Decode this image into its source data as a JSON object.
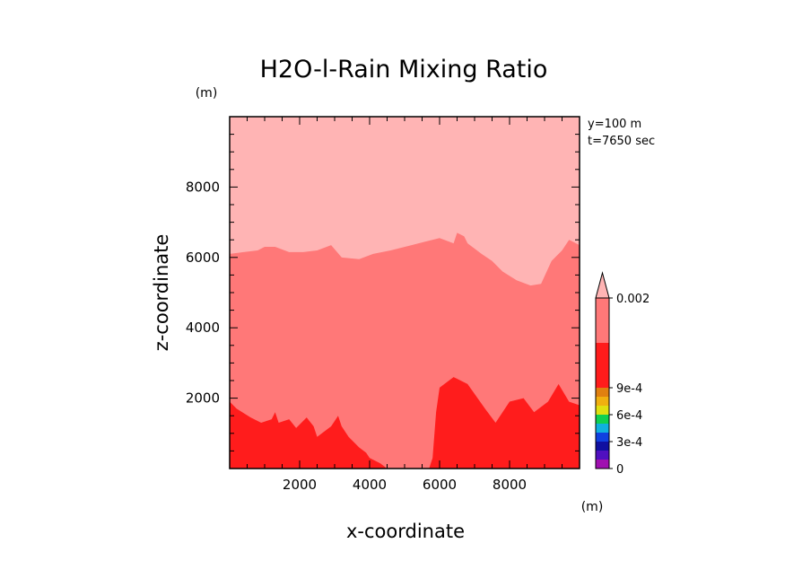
{
  "chart_data": {
    "type": "heatmap",
    "title": "H2O-l-Rain Mixing Ratio",
    "xlabel": "x-coordinate",
    "ylabel": "z-coordinate",
    "x_unit": "(m)",
    "y_unit": "(m)",
    "annotations": [
      "y=100 m",
      "t=7650 sec"
    ],
    "xlim": [
      0,
      10000
    ],
    "ylim": [
      0,
      10000
    ],
    "xticks": [
      2000,
      4000,
      6000,
      8000
    ],
    "yticks": [
      2000,
      4000,
      6000,
      8000
    ],
    "xtick_labels": [
      "2000",
      "4000",
      "6000",
      "8000"
    ],
    "ytick_labels": [
      "2000",
      "4000",
      "6000",
      "8000"
    ],
    "grid": false,
    "colorbar": {
      "labels": [
        "0.002",
        "9e-4",
        "6e-4",
        "3e-4",
        "0"
      ],
      "colors": [
        "#a010b0",
        "#5010c0",
        "#1010a0",
        "#1040e0",
        "#10b0e0",
        "#10d050",
        "#e0e010",
        "#f0b010",
        "#e08010",
        "#ff1c1c",
        "#ff7878",
        "#ffb4b4"
      ],
      "extend": "max"
    },
    "regions": [
      {
        "name": "light-pink-top",
        "color": "#ffb4b4",
        "boundary_points": []
      },
      {
        "name": "mid-red-band",
        "color": "#ff7878",
        "upper_boundary": [
          [
            0,
            6100
          ],
          [
            400,
            6150
          ],
          [
            800,
            6200
          ],
          [
            1000,
            6300
          ],
          [
            1300,
            6300
          ],
          [
            1700,
            6150
          ],
          [
            2100,
            6150
          ],
          [
            2500,
            6200
          ],
          [
            2900,
            6350
          ],
          [
            3200,
            6000
          ],
          [
            3700,
            5950
          ],
          [
            4100,
            6100
          ],
          [
            4600,
            6200
          ],
          [
            5200,
            6350
          ],
          [
            5600,
            6450
          ],
          [
            6000,
            6550
          ],
          [
            6400,
            6400
          ],
          [
            6500,
            6700
          ],
          [
            6700,
            6600
          ],
          [
            6800,
            6400
          ],
          [
            7200,
            6100
          ],
          [
            7500,
            5900
          ],
          [
            7800,
            5600
          ],
          [
            8200,
            5350
          ],
          [
            8600,
            5200
          ],
          [
            8900,
            5250
          ],
          [
            9200,
            5900
          ],
          [
            9500,
            6200
          ],
          [
            9700,
            6500
          ],
          [
            10000,
            6350
          ]
        ]
      },
      {
        "name": "dark-red-bottom",
        "color": "#ff1c1c",
        "upper_boundary": [
          [
            0,
            1900
          ],
          [
            200,
            1700
          ],
          [
            600,
            1450
          ],
          [
            900,
            1300
          ],
          [
            1200,
            1400
          ],
          [
            1300,
            1600
          ],
          [
            1400,
            1300
          ],
          [
            1700,
            1400
          ],
          [
            1900,
            1150
          ],
          [
            2200,
            1450
          ],
          [
            2400,
            1200
          ],
          [
            2500,
            900
          ],
          [
            2900,
            1200
          ],
          [
            3100,
            1500
          ],
          [
            3200,
            1200
          ],
          [
            3400,
            900
          ],
          [
            3700,
            600
          ],
          [
            3900,
            450
          ],
          [
            4000,
            300
          ],
          [
            4300,
            150
          ],
          [
            4500,
            0
          ],
          [
            5700,
            0
          ],
          [
            5800,
            300
          ],
          [
            5900,
            1600
          ],
          [
            6000,
            2300
          ],
          [
            6400,
            2600
          ],
          [
            6800,
            2400
          ],
          [
            7300,
            1700
          ],
          [
            7600,
            1300
          ],
          [
            8000,
            1900
          ],
          [
            8400,
            2000
          ],
          [
            8700,
            1600
          ],
          [
            9100,
            1900
          ],
          [
            9400,
            2400
          ],
          [
            9700,
            1900
          ],
          [
            10000,
            1800
          ]
        ]
      }
    ]
  }
}
